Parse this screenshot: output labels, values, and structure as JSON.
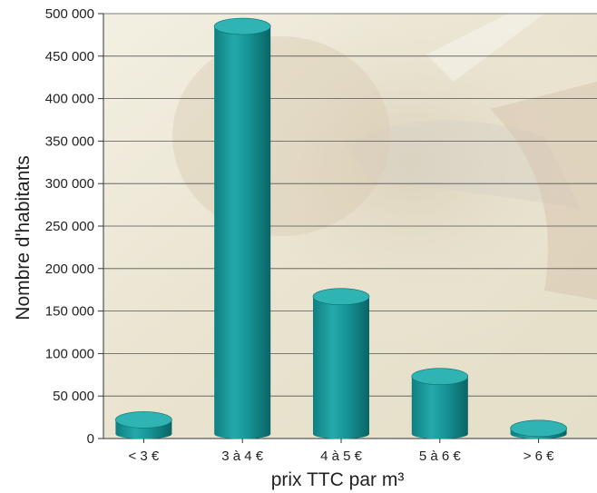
{
  "chart_data": {
    "type": "bar",
    "title": "",
    "xlabel": "prix TTC par m³",
    "ylabel": "Nombre d'habitants",
    "categories": [
      "< 3 €",
      "3 à 4 €",
      "4 à 5 €",
      "5 à 6 €",
      "> 6 €"
    ],
    "values": [
      22000,
      485000,
      167000,
      73000,
      12000
    ],
    "ylim": [
      0,
      500000
    ],
    "yticks": [
      0,
      50000,
      100000,
      150000,
      200000,
      250000,
      300000,
      350000,
      400000,
      450000,
      500000
    ],
    "ytick_labels": [
      "0",
      "50 000",
      "100 000",
      "150 000",
      "200 000",
      "250 000",
      "300 000",
      "350 000",
      "400 000",
      "450 000",
      "500 000"
    ],
    "grid": true,
    "bar_style": "3d-cylinder",
    "colors": {
      "bar": "#1a9c9e",
      "bar_dark": "#0b6f71",
      "bar_top": "#2fb3b3",
      "grid": "#555555",
      "plot_background": "#f1ecdc"
    }
  }
}
